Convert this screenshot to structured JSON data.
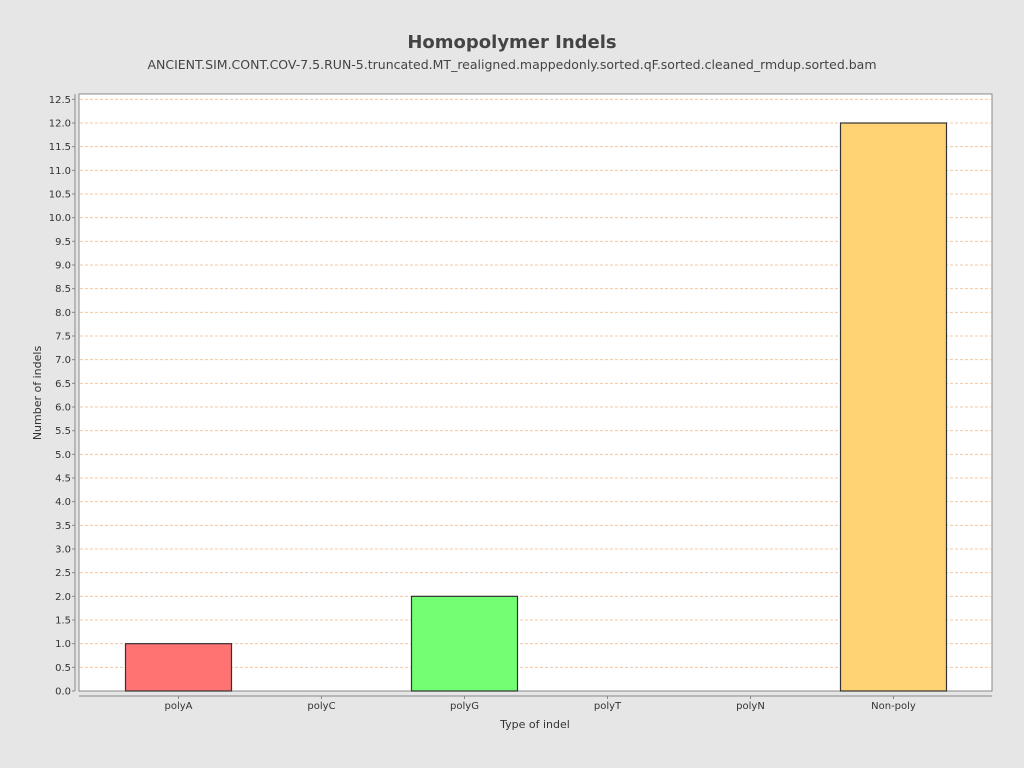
{
  "chart_data": {
    "type": "bar",
    "title": "Homopolymer Indels",
    "subtitle": "ANCIENT.SIM.CONT.COV-7.5.RUN-5.truncated.MT_realigned.mappedonly.sorted.qF.sorted.cleaned_rmdup.sorted.bam",
    "xlabel": "Type of indel",
    "ylabel": "Number of indels",
    "categories": [
      "polyA",
      "polyC",
      "polyG",
      "polyT",
      "polyN",
      "Non-poly"
    ],
    "values": [
      1,
      0,
      2,
      0,
      0,
      12
    ],
    "colors": [
      "#ff7373",
      "#7373ff",
      "#73ff73",
      "#cccccc",
      "#737373",
      "#ffd373"
    ],
    "ylim": [
      0,
      12.5
    ],
    "ytick_step": 0.5,
    "grid": true,
    "legend": "none"
  }
}
